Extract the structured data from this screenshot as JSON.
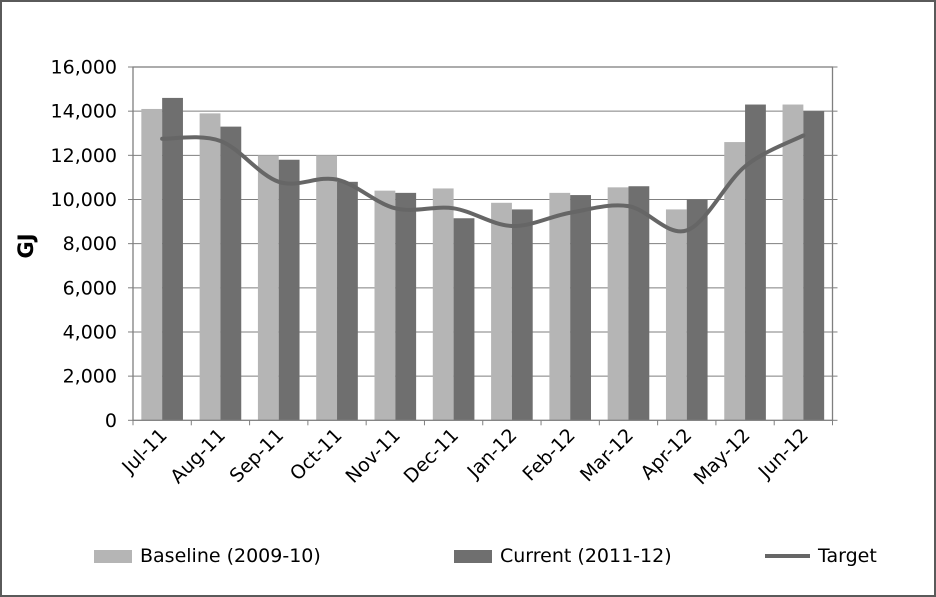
{
  "chart_data": {
    "type": "bar",
    "title": "",
    "categories": [
      "Jul-11",
      "Aug-11",
      "Sep-11",
      "Oct-11",
      "Nov-11",
      "Dec-11",
      "Jan-12",
      "Feb-12",
      "Mar-12",
      "Apr-12",
      "May-12",
      "Jun-12"
    ],
    "series": [
      {
        "name": "Baseline (2009-10)",
        "type": "bar",
        "color": "#b5b5b5",
        "values": [
          14100,
          13900,
          12000,
          12000,
          10400,
          10500,
          9850,
          10300,
          10550,
          9550,
          12600,
          14300
        ]
      },
      {
        "name": "Current (2011-12)",
        "type": "bar",
        "color": "#6f6f6f",
        "values": [
          14600,
          13300,
          11800,
          10800,
          10300,
          9150,
          9550,
          10200,
          10600,
          10000,
          14300,
          14000
        ]
      },
      {
        "name": "Target",
        "type": "line",
        "color": "#666666",
        "values": [
          12750,
          12650,
          10800,
          10900,
          9600,
          9600,
          8800,
          9400,
          9700,
          8600,
          11500,
          12900
        ]
      }
    ],
    "xlabel": "",
    "ylabel": "GJ",
    "ylim": [
      0,
      16000
    ],
    "ytick_step": 2000,
    "ytick_labels": [
      "0",
      "2,000",
      "4,000",
      "6,000",
      "8,000",
      "10,000",
      "12,000",
      "14,000",
      "16,000"
    ],
    "grid": true,
    "legend_position": "bottom",
    "colors": {
      "background": "#ffffff",
      "frame_border": "#5a5a5a",
      "gridline": "#7f7f7f",
      "axis": "#7f7f7f",
      "text": "#000000"
    }
  }
}
